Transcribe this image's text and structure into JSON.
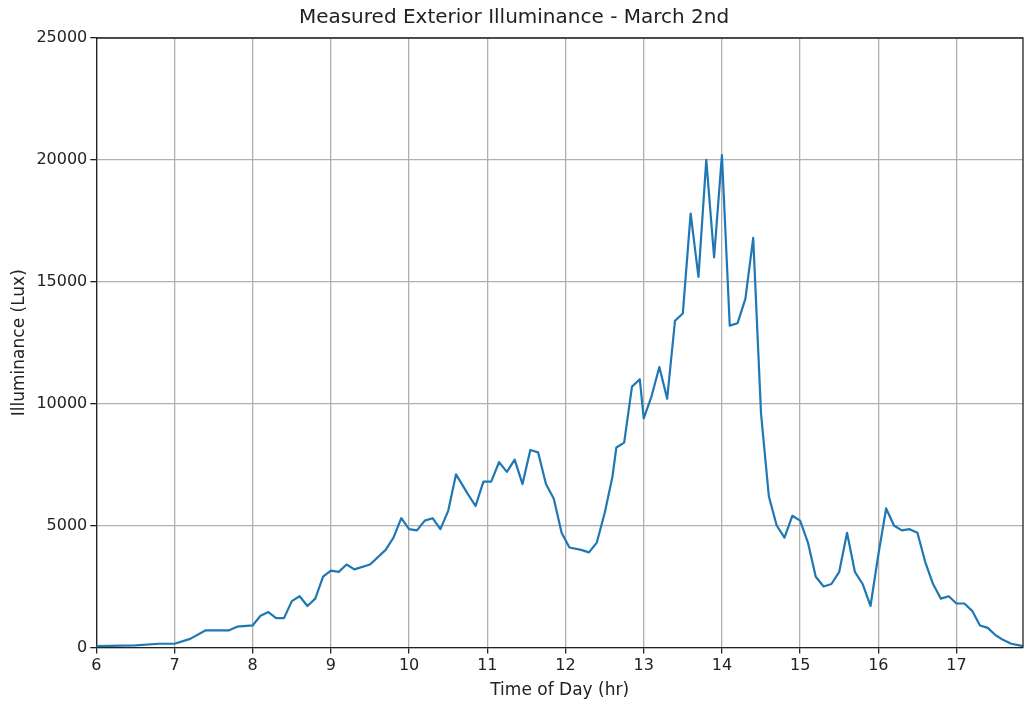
{
  "chart_data": {
    "type": "line",
    "title": "Measured Exterior Illuminance - March 2nd",
    "xlabel": "Time of Day (hr)",
    "ylabel": "Illuminance (Lux)",
    "x": [
      6.0,
      6.5,
      6.8,
      7.0,
      7.2,
      7.4,
      7.7,
      7.8,
      8.0,
      8.1,
      8.2,
      8.3,
      8.4,
      8.5,
      8.6,
      8.7,
      8.8,
      8.9,
      9.0,
      9.1,
      9.2,
      9.3,
      9.5,
      9.7,
      9.8,
      9.9,
      10.0,
      10.1,
      10.2,
      10.3,
      10.4,
      10.5,
      10.6,
      10.75,
      10.85,
      10.95,
      11.05,
      11.15,
      11.25,
      11.35,
      11.45,
      11.55,
      11.65,
      11.75,
      11.85,
      11.95,
      12.05,
      12.2,
      12.3,
      12.4,
      12.5,
      12.6,
      12.65,
      12.75,
      12.85,
      12.95,
      13.0,
      13.1,
      13.2,
      13.3,
      13.4,
      13.5,
      13.6,
      13.7,
      13.8,
      13.9,
      14.0,
      14.1,
      14.2,
      14.3,
      14.4,
      14.5,
      14.6,
      14.7,
      14.8,
      14.9,
      15.0,
      15.1,
      15.2,
      15.3,
      15.4,
      15.5,
      15.6,
      15.7,
      15.8,
      15.9,
      16.0,
      16.1,
      16.2,
      16.3,
      16.4,
      16.5,
      16.6,
      16.7,
      16.8,
      16.9,
      17.0,
      17.1,
      17.2,
      17.3,
      17.4,
      17.5,
      17.6,
      17.7,
      17.85
    ],
    "series": [
      {
        "color": "#1f77b4",
        "values": [
          50,
          80,
          150,
          150,
          350,
          700,
          700,
          850,
          900,
          1300,
          1450,
          1200,
          1200,
          1900,
          2100,
          1700,
          2000,
          2900,
          3150,
          3100,
          3400,
          3200,
          3400,
          4000,
          4500,
          5300,
          4850,
          4800,
          5200,
          5300,
          4850,
          5600,
          7100,
          6300,
          5800,
          6800,
          6800,
          7600,
          7200,
          7700,
          6700,
          8100,
          8000,
          6700,
          6100,
          4700,
          4100,
          4000,
          3900,
          4300,
          5500,
          7000,
          8200,
          8400,
          10700,
          11000,
          9400,
          10300,
          11500,
          10200,
          13400,
          13700,
          17800,
          15200,
          20000,
          16000,
          20200,
          13200,
          13300,
          14300,
          16800,
          9600,
          6200,
          5000,
          4500,
          5400,
          5200,
          4300,
          2900,
          2500,
          2600,
          3100,
          4700,
          3100,
          2600,
          1700,
          3800,
          5700,
          5000,
          4800,
          4850,
          4700,
          3500,
          2600,
          2000,
          2100,
          1800,
          1800,
          1500,
          900,
          800,
          500,
          300,
          150,
          50
        ]
      }
    ],
    "xlim": [
      6,
      17.85
    ],
    "xticks": [
      6,
      7,
      8,
      9,
      10,
      11,
      12,
      13,
      14,
      15,
      16,
      17
    ],
    "ylim": [
      0,
      25000
    ],
    "yticks": [
      0,
      5000,
      10000,
      15000,
      20000,
      25000
    ],
    "grid": true,
    "legend": false,
    "marker": "none",
    "line_style": "solid"
  }
}
